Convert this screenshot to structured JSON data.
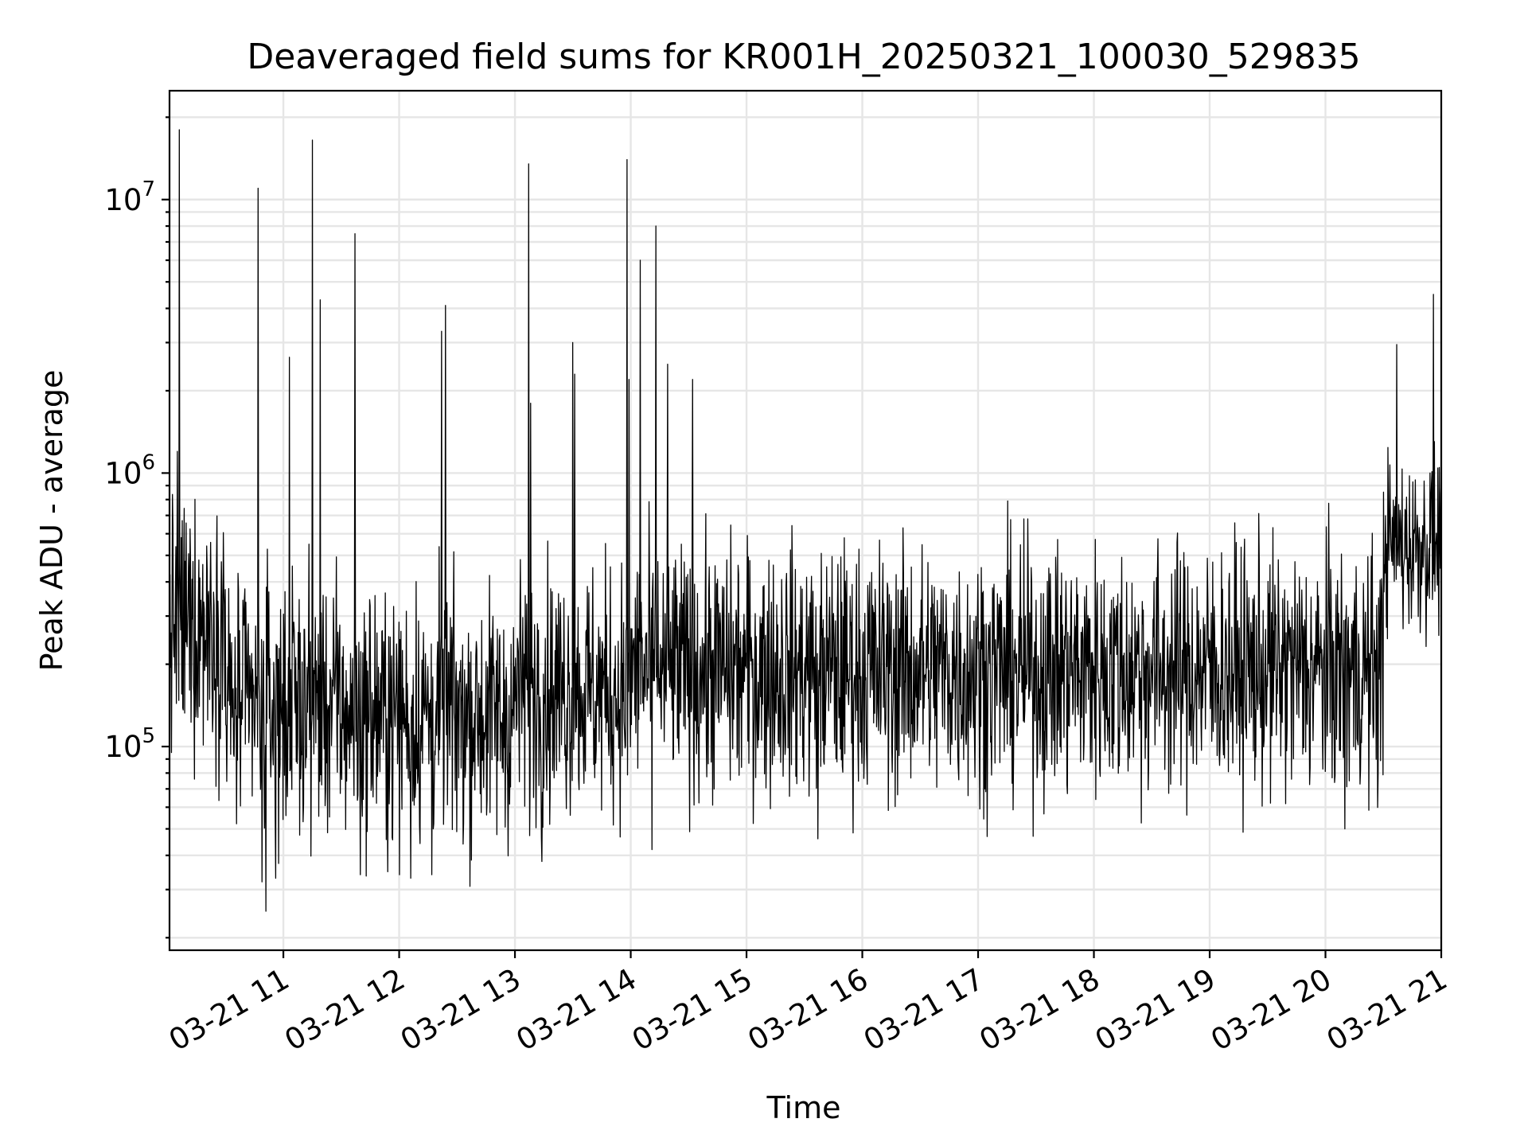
{
  "chart_data": {
    "type": "line",
    "title": "Deaveraged field sums for KR001H_20250321_100030_529835",
    "xlabel": "Time",
    "ylabel": "Peak ADU - average",
    "yscale": "log",
    "ylim": [
      18000,
      25000000
    ],
    "xlim": [
      "2025-03-21 10:01",
      "2025-03-21 21:00"
    ],
    "grid": true,
    "line_color": "#000000",
    "x_ticks": [
      "03-21 11",
      "03-21 12",
      "03-21 13",
      "03-21 14",
      "03-21 15",
      "03-21 16",
      "03-21 17",
      "03-21 18",
      "03-21 19",
      "03-21 20",
      "03-21 21"
    ],
    "y_ticks": [
      {
        "base": "10",
        "exp": "5",
        "value": 100000
      },
      {
        "base": "10",
        "exp": "6",
        "value": 1000000
      },
      {
        "base": "10",
        "exp": "7",
        "value": 10000000
      }
    ],
    "segments": [
      {
        "start": "2025-03-21 10:01",
        "end": "2025-03-21 10:30",
        "level": 280000
      },
      {
        "start": "2025-03-21 10:30",
        "end": "2025-03-21 11:30",
        "level": 140000
      },
      {
        "start": "2025-03-21 11:30",
        "end": "2025-03-21 13:00",
        "level": 130000
      },
      {
        "start": "2025-03-21 13:00",
        "end": "2025-03-21 14:00",
        "level": 160000
      },
      {
        "start": "2025-03-21 14:00",
        "end": "2025-03-21 20:30",
        "level": 190000
      },
      {
        "start": "2025-03-21 20:30",
        "end": "2025-03-21 21:00",
        "level": 550000
      }
    ],
    "spikes": [
      {
        "time": "2025-03-21 10:06",
        "value": 18000000
      },
      {
        "time": "2025-03-21 10:05",
        "value": 1200000
      },
      {
        "time": "2025-03-21 10:47",
        "value": 11000000
      },
      {
        "time": "2025-03-21 11:03",
        "value": 2650000
      },
      {
        "time": "2025-03-21 11:15",
        "value": 16500000
      },
      {
        "time": "2025-03-21 11:19",
        "value": 4300000
      },
      {
        "time": "2025-03-21 11:37",
        "value": 7500000
      },
      {
        "time": "2025-03-21 12:22",
        "value": 3300000
      },
      {
        "time": "2025-03-21 12:24",
        "value": 4100000
      },
      {
        "time": "2025-03-21 13:07",
        "value": 13500000
      },
      {
        "time": "2025-03-21 13:08",
        "value": 1800000
      },
      {
        "time": "2025-03-21 13:30",
        "value": 3000000
      },
      {
        "time": "2025-03-21 13:31",
        "value": 2300000
      },
      {
        "time": "2025-03-21 13:58",
        "value": 14000000
      },
      {
        "time": "2025-03-21 13:59",
        "value": 2200000
      },
      {
        "time": "2025-03-21 14:05",
        "value": 6000000
      },
      {
        "time": "2025-03-21 14:13",
        "value": 8000000
      },
      {
        "time": "2025-03-21 14:19",
        "value": 2500000
      },
      {
        "time": "2025-03-21 14:32",
        "value": 2200000
      },
      {
        "time": "2025-03-21 20:37",
        "value": 2950000
      },
      {
        "time": "2025-03-21 20:56",
        "value": 4500000
      }
    ],
    "dips": [
      {
        "time": "2025-03-21 10:51",
        "value": 25000
      },
      {
        "time": "2025-03-21 10:49",
        "value": 32000
      },
      {
        "time": "2025-03-21 10:56",
        "value": 33000
      },
      {
        "time": "2025-03-21 11:40",
        "value": 34000
      },
      {
        "time": "2025-03-21 12:06",
        "value": 33000
      },
      {
        "time": "2025-03-21 12:17",
        "value": 34000
      },
      {
        "time": "2025-03-21 13:14",
        "value": 38000
      },
      {
        "time": "2025-03-21 14:11",
        "value": 42000
      },
      {
        "time": "2025-03-21 15:37",
        "value": 46000
      },
      {
        "time": "2025-03-21 20:10",
        "value": 50000
      }
    ]
  }
}
